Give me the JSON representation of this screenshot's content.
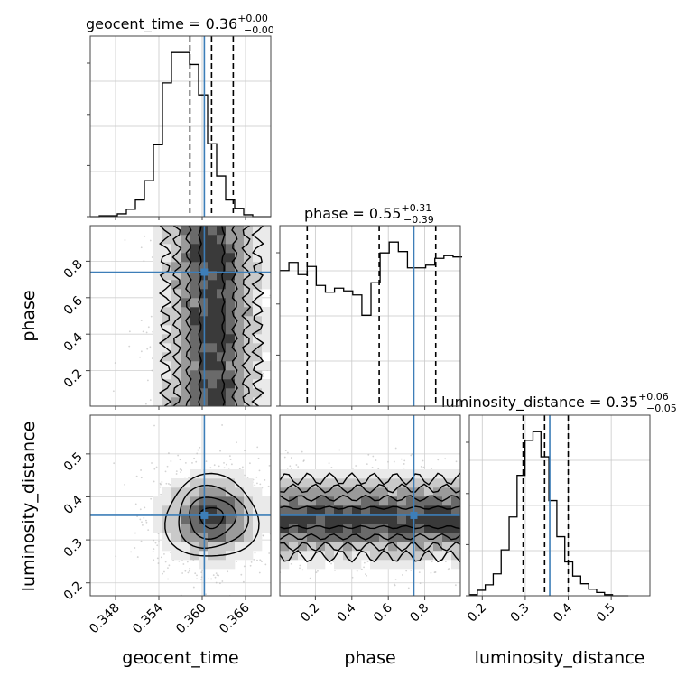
{
  "chart_data": {
    "type": "corner",
    "parameters": [
      "geocent_time",
      "phase",
      "luminosity_distance"
    ],
    "truth": {
      "geocent_time": 0.3603,
      "phase": 0.74,
      "luminosity_distance": 0.357
    },
    "truth_color": "#3d7eb8",
    "panel_titles": {
      "geocent_time": {
        "base": "geocent_time = 0.36",
        "sup": "+0.00",
        "sub": "−0.00"
      },
      "phase": {
        "base": "phase = 0.55",
        "sup": "+0.31",
        "sub": "−0.39"
      },
      "luminosity_distance": {
        "base": "luminosity_distance = 0.35",
        "sup": "+0.06",
        "sub": "−0.05"
      }
    },
    "axis_labels": {
      "x": [
        "geocent_time",
        "phase",
        "luminosity_distance"
      ],
      "y": [
        "phase",
        "luminosity_distance"
      ]
    },
    "ticks": {
      "geocent_time": {
        "values": [
          0.348,
          0.354,
          0.36,
          0.366
        ],
        "labels": [
          "0.348",
          "0.354",
          "0.360",
          "0.366"
        ]
      },
      "phase": {
        "values": [
          0.2,
          0.4,
          0.6,
          0.8
        ],
        "labels": [
          "0.2",
          "0.4",
          "0.6",
          "0.8"
        ]
      },
      "luminosity_distance": {
        "values": [
          0.2,
          0.3,
          0.4,
          0.5
        ],
        "labels": [
          "0.2",
          "0.3",
          "0.4",
          "0.5"
        ]
      }
    },
    "ranges": {
      "geocent_time": [
        0.3445,
        0.3695
      ],
      "phase": [
        0.005,
        0.995
      ],
      "luminosity_distance": [
        0.17,
        0.59
      ]
    },
    "histograms": {
      "geocent_time": {
        "edges_start": 0.3445,
        "bin_width": 0.00125,
        "counts": [
          0,
          1,
          1,
          3,
          8,
          18,
          39,
          78,
          145,
          178,
          178,
          165,
          132,
          79,
          44,
          18,
          9,
          2,
          0,
          0
        ],
        "quantiles": [
          0.3583,
          0.3613,
          0.3643
        ]
      },
      "phase": {
        "edges_start": 0.005,
        "bin_width": 0.05,
        "counts": [
          100,
          106,
          97,
          103,
          89,
          84,
          87,
          85,
          82,
          67,
          91,
          113,
          121,
          114,
          102,
          102,
          104,
          109,
          111,
          110
        ],
        "quantiles": [
          0.155,
          0.55,
          0.86
        ]
      },
      "luminosity_distance": {
        "edges_start": 0.17,
        "bin_width": 0.0185,
        "counts": [
          1,
          5,
          10,
          20,
          42,
          72,
          110,
          142,
          150,
          127,
          87,
          54,
          31,
          18,
          11,
          6,
          3,
          1,
          0,
          0
        ],
        "quantiles": [
          0.295,
          0.345,
          0.4
        ]
      }
    },
    "grid": true,
    "contour_levels": [
      "0.5σ",
      "1σ",
      "1.5σ",
      "2σ"
    ]
  }
}
